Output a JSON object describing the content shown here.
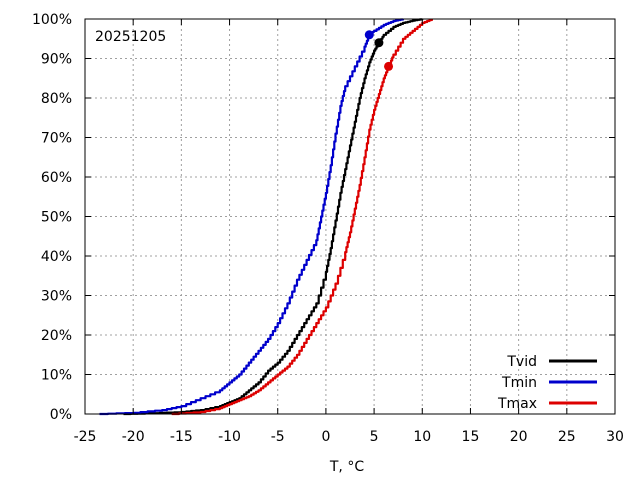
{
  "chart_data": {
    "type": "line",
    "annotation": "20251205",
    "xlabel": "T, °C",
    "ylabel": "",
    "xlim": [
      -25,
      30
    ],
    "ylim": [
      0,
      100
    ],
    "x_ticks": [
      -25,
      -20,
      -15,
      -10,
      -5,
      0,
      5,
      10,
      15,
      20,
      25,
      30
    ],
    "y_ticks": [
      0,
      10,
      20,
      30,
      40,
      50,
      60,
      70,
      80,
      90,
      100
    ],
    "y_tick_labels": [
      "0%",
      "10%",
      "20%",
      "30%",
      "40%",
      "50%",
      "60%",
      "70%",
      "80%",
      "90%",
      "100%"
    ],
    "grid": true,
    "legend_position": "bottom-right",
    "series": [
      {
        "name": "Tvid",
        "color": "#000000",
        "points": [
          [
            -21,
            0
          ],
          [
            -18,
            0.2
          ],
          [
            -15,
            0.5
          ],
          [
            -13,
            1
          ],
          [
            -11,
            2
          ],
          [
            -10,
            3
          ],
          [
            -9,
            4
          ],
          [
            -8,
            6
          ],
          [
            -7,
            8
          ],
          [
            -6,
            11
          ],
          [
            -5,
            13
          ],
          [
            -4,
            16
          ],
          [
            -3,
            20
          ],
          [
            -2,
            24
          ],
          [
            -1,
            28
          ],
          [
            0,
            36
          ],
          [
            0.5,
            42
          ],
          [
            1,
            49
          ],
          [
            1.5,
            56
          ],
          [
            2,
            62
          ],
          [
            2.5,
            68
          ],
          [
            3,
            74
          ],
          [
            3.5,
            80
          ],
          [
            4,
            85
          ],
          [
            4.5,
            89
          ],
          [
            5,
            92
          ],
          [
            5.5,
            94
          ],
          [
            6,
            96
          ],
          [
            7,
            98
          ],
          [
            8,
            99
          ],
          [
            9,
            99.6
          ],
          [
            10,
            100
          ]
        ],
        "marker": [
          5.5,
          94
        ]
      },
      {
        "name": "Tmin",
        "color": "#0000cc",
        "points": [
          [
            -23.5,
            0
          ],
          [
            -20,
            0.3
          ],
          [
            -17,
            1
          ],
          [
            -15,
            2
          ],
          [
            -13,
            4
          ],
          [
            -11,
            6
          ],
          [
            -10,
            8
          ],
          [
            -9,
            10
          ],
          [
            -8,
            13
          ],
          [
            -7,
            16
          ],
          [
            -6,
            19
          ],
          [
            -5,
            23
          ],
          [
            -4,
            28
          ],
          [
            -3,
            34
          ],
          [
            -2,
            39
          ],
          [
            -1,
            44
          ],
          [
            -0.5,
            50
          ],
          [
            0,
            56
          ],
          [
            0.5,
            63
          ],
          [
            1,
            71
          ],
          [
            1.5,
            78
          ],
          [
            2,
            83
          ],
          [
            3,
            88
          ],
          [
            4,
            93
          ],
          [
            4.5,
            96
          ],
          [
            5,
            97
          ],
          [
            6,
            98.5
          ],
          [
            7,
            99.5
          ],
          [
            8,
            100
          ]
        ],
        "marker": [
          4.5,
          96
        ]
      },
      {
        "name": "Tmax",
        "color": "#dd0000",
        "points": [
          [
            -16,
            0
          ],
          [
            -13,
            0.5
          ],
          [
            -11,
            1.5
          ],
          [
            -10,
            2.5
          ],
          [
            -9,
            3.5
          ],
          [
            -8,
            4.5
          ],
          [
            -7,
            6
          ],
          [
            -6,
            8
          ],
          [
            -5,
            10
          ],
          [
            -4,
            12
          ],
          [
            -3,
            15
          ],
          [
            -2,
            19
          ],
          [
            -1,
            23
          ],
          [
            0,
            27
          ],
          [
            1,
            33
          ],
          [
            2,
            41
          ],
          [
            2.5,
            46
          ],
          [
            3,
            52
          ],
          [
            3.5,
            58
          ],
          [
            4,
            65
          ],
          [
            4.5,
            72
          ],
          [
            5,
            77
          ],
          [
            5.5,
            81
          ],
          [
            6,
            85
          ],
          [
            6.5,
            88
          ],
          [
            7,
            91
          ],
          [
            8,
            95
          ],
          [
            9,
            97
          ],
          [
            10,
            99
          ],
          [
            11,
            100
          ]
        ],
        "marker": [
          6.5,
          88
        ]
      }
    ]
  }
}
